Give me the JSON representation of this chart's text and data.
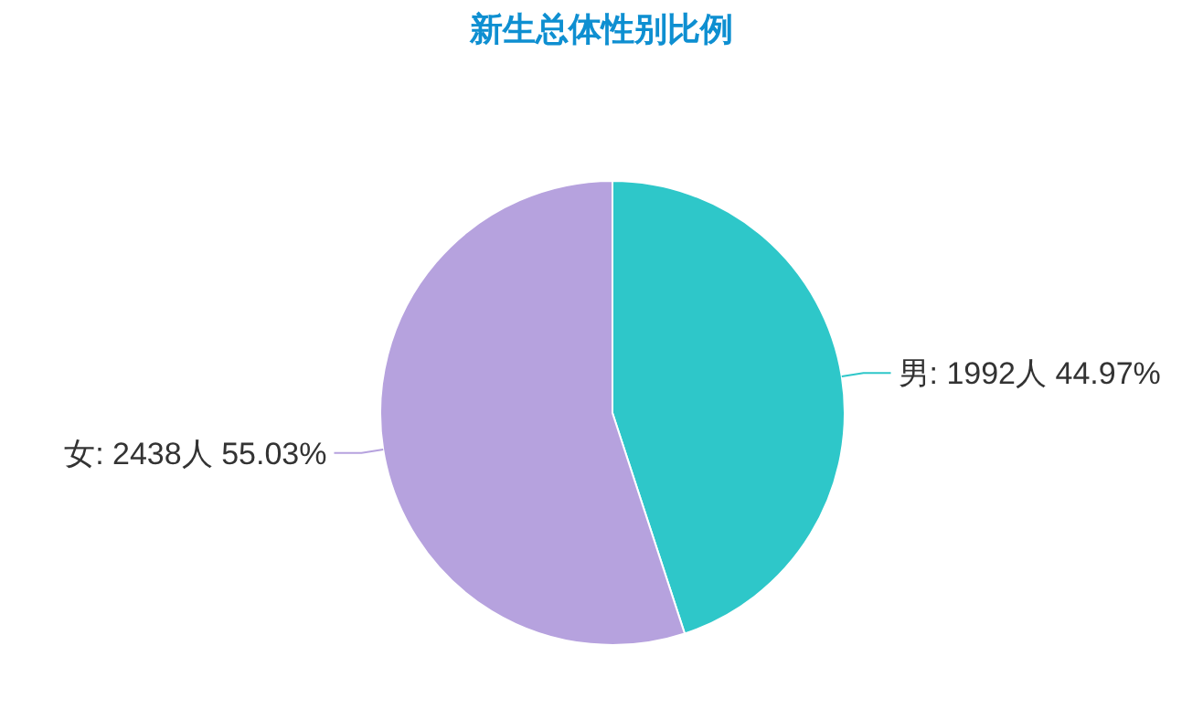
{
  "chart_data": {
    "type": "pie",
    "title": "新生总体性别比例",
    "categories": [
      "男",
      "女"
    ],
    "values": [
      1992,
      2438
    ],
    "value_labels": [
      "1992人 44.97%",
      "2438人 55.03%"
    ],
    "colors": [
      "#2ec7c9",
      "#b6a2de"
    ]
  }
}
